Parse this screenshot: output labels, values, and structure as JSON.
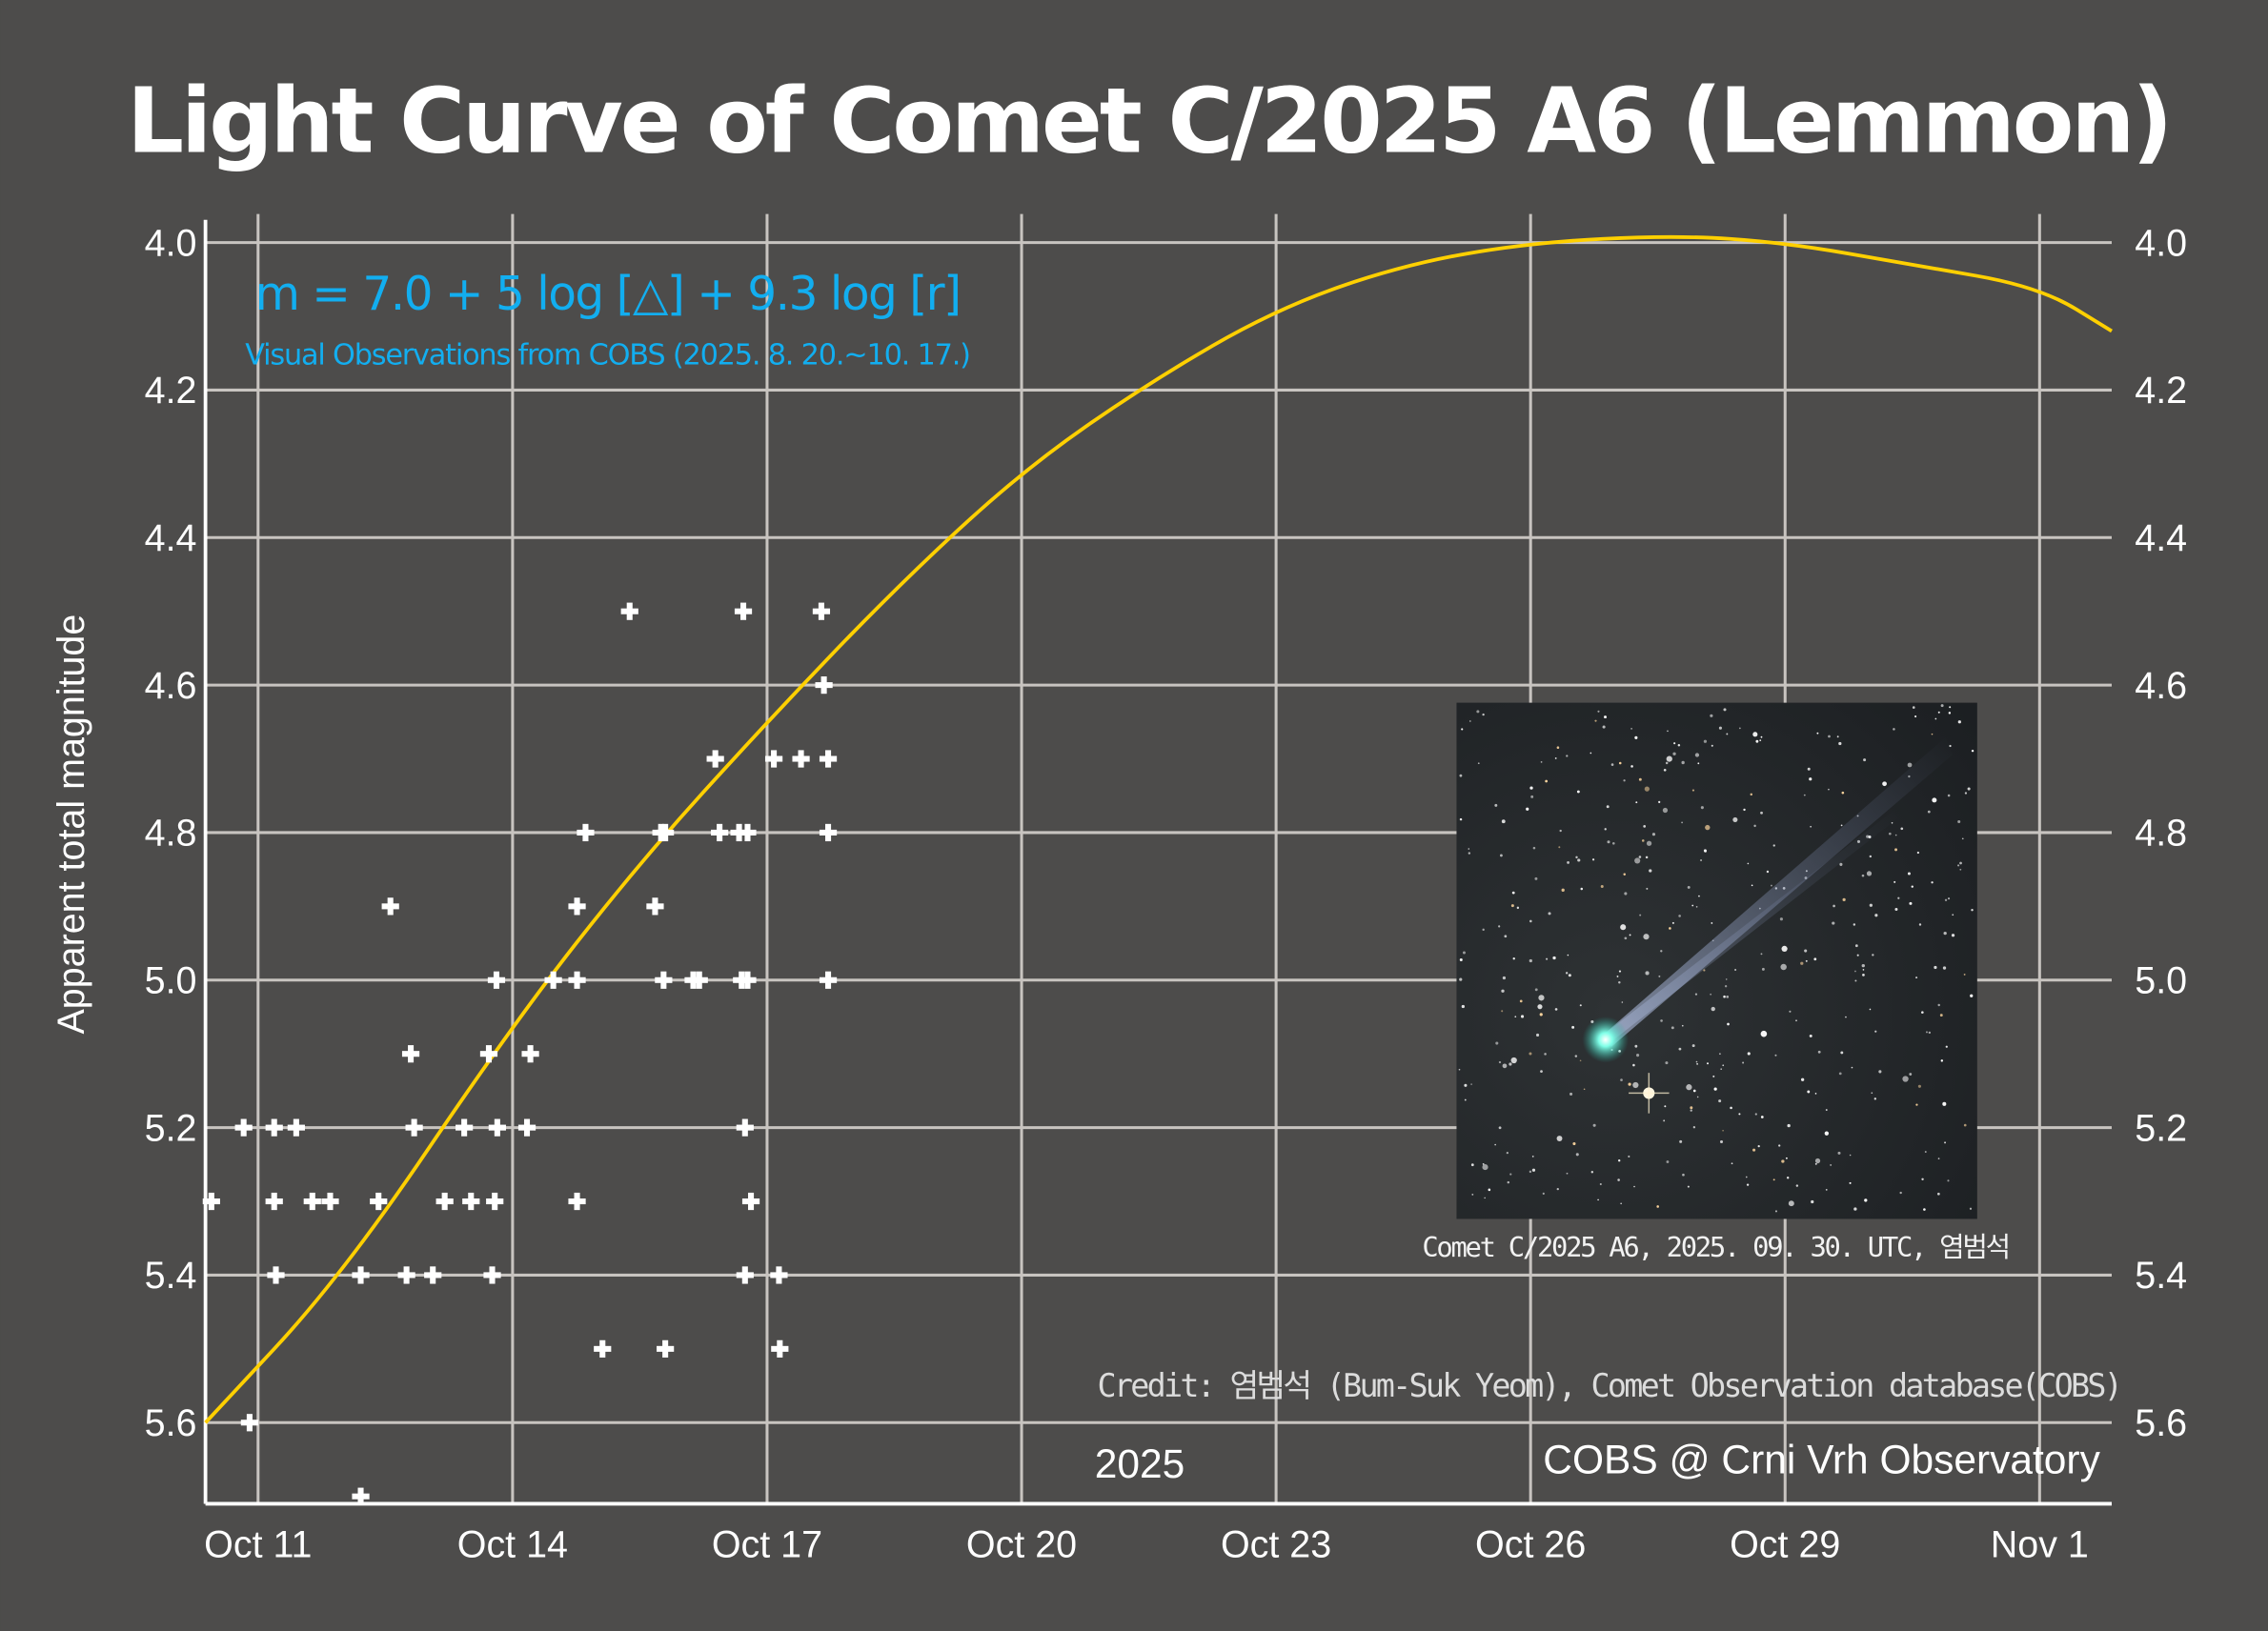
{
  "chart_data": {
    "type": "scatter",
    "title": "Light Curve of Comet C/2025 A6 (Lemmon)",
    "ylabel": "Apparent total magnitude",
    "xlabel": "2025",
    "x_unit": "day of October 2025",
    "xlim": [
      10.38,
      32.85
    ],
    "ylim": [
      5.71,
      3.975
    ],
    "y_inverted": true,
    "grid": true,
    "x_ticks": [
      {
        "value": 11,
        "label": "Oct 11"
      },
      {
        "value": 14,
        "label": "Oct 14"
      },
      {
        "value": 17,
        "label": "Oct 17"
      },
      {
        "value": 20,
        "label": "Oct 20"
      },
      {
        "value": 23,
        "label": "Oct 23"
      },
      {
        "value": 26,
        "label": "Oct 26"
      },
      {
        "value": 29,
        "label": "Oct 29"
      },
      {
        "value": 32,
        "label": "Nov 1"
      }
    ],
    "y_ticks": [
      "4.0",
      "4.2",
      "4.4",
      "4.6",
      "4.8",
      "5.0",
      "5.2",
      "5.4",
      "5.6"
    ],
    "annotations": {
      "formula": "m = 7.0 + 5 log [△]  + 9.3 log [r]",
      "data_source": "Visual Observations from COBS (2025. 8. 20.~10. 17.)",
      "photo_caption": "Comet C/2025 A6, 2025. 09. 30. UTC, 염범석",
      "credit": "Credit: 염범석 (Bum-Suk Yeom), Comet Observation database(COBS)",
      "watermark": "COBS @ Crni Vrh Observatory"
    },
    "colors": {
      "background": "#4d4c4b",
      "grid": "#c8c4c0",
      "model_curve": "#ffd000",
      "observations": "#ffffff",
      "formula_text": "#12aef0"
    },
    "series": [
      {
        "type": "scatter",
        "marker": "plus",
        "points": [
          [
            15.38,
            4.5
          ],
          [
            16.72,
            4.5
          ],
          [
            17.64,
            4.5
          ],
          [
            17.67,
            4.6
          ],
          [
            16.39,
            4.7
          ],
          [
            17.08,
            4.7
          ],
          [
            17.4,
            4.7
          ],
          [
            17.72,
            4.7
          ],
          [
            14.86,
            4.8
          ],
          [
            15.75,
            4.8
          ],
          [
            15.8,
            4.8
          ],
          [
            16.44,
            4.8
          ],
          [
            16.67,
            4.8
          ],
          [
            16.77,
            4.8
          ],
          [
            17.72,
            4.8
          ],
          [
            12.56,
            4.9
          ],
          [
            14.76,
            4.9
          ],
          [
            15.68,
            4.9
          ],
          [
            13.81,
            5.0
          ],
          [
            14.48,
            5.0
          ],
          [
            14.76,
            5.0
          ],
          [
            15.78,
            5.0
          ],
          [
            16.13,
            5.0
          ],
          [
            16.2,
            5.0
          ],
          [
            16.7,
            5.0
          ],
          [
            16.77,
            5.0
          ],
          [
            17.72,
            5.0
          ],
          [
            12.8,
            5.1
          ],
          [
            13.72,
            5.1
          ],
          [
            14.21,
            5.1
          ],
          [
            10.83,
            5.2
          ],
          [
            11.19,
            5.2
          ],
          [
            11.45,
            5.2
          ],
          [
            12.84,
            5.2
          ],
          [
            13.43,
            5.2
          ],
          [
            13.82,
            5.2
          ],
          [
            14.17,
            5.2
          ],
          [
            16.74,
            5.2
          ],
          [
            10.45,
            5.3
          ],
          [
            11.19,
            5.3
          ],
          [
            11.64,
            5.3
          ],
          [
            11.85,
            5.3
          ],
          [
            12.42,
            5.3
          ],
          [
            13.2,
            5.3
          ],
          [
            13.51,
            5.3
          ],
          [
            13.79,
            5.3
          ],
          [
            14.76,
            5.3
          ],
          [
            16.81,
            5.3
          ],
          [
            11.21,
            5.4
          ],
          [
            12.21,
            5.4
          ],
          [
            12.75,
            5.4
          ],
          [
            13.06,
            5.4
          ],
          [
            13.76,
            5.4
          ],
          [
            16.74,
            5.4
          ],
          [
            17.14,
            5.4
          ],
          [
            15.06,
            5.5
          ],
          [
            15.8,
            5.5
          ],
          [
            17.15,
            5.5
          ],
          [
            10.9,
            5.6
          ],
          [
            12.21,
            5.7
          ]
        ]
      },
      {
        "type": "line",
        "points": [
          [
            10.38,
            5.6
          ],
          [
            12,
            5.4
          ],
          [
            14,
            5.06
          ],
          [
            15.5,
            4.84
          ],
          [
            17,
            4.65
          ],
          [
            18.5,
            4.47
          ],
          [
            20,
            4.31
          ],
          [
            21.5,
            4.19
          ],
          [
            23,
            4.09
          ],
          [
            24.5,
            4.03
          ],
          [
            26,
            4.0
          ],
          [
            27.7,
            3.99
          ],
          [
            29,
            4.0
          ],
          [
            30.5,
            4.03
          ],
          [
            32,
            4.06
          ],
          [
            32.85,
            4.12
          ]
        ]
      }
    ]
  }
}
